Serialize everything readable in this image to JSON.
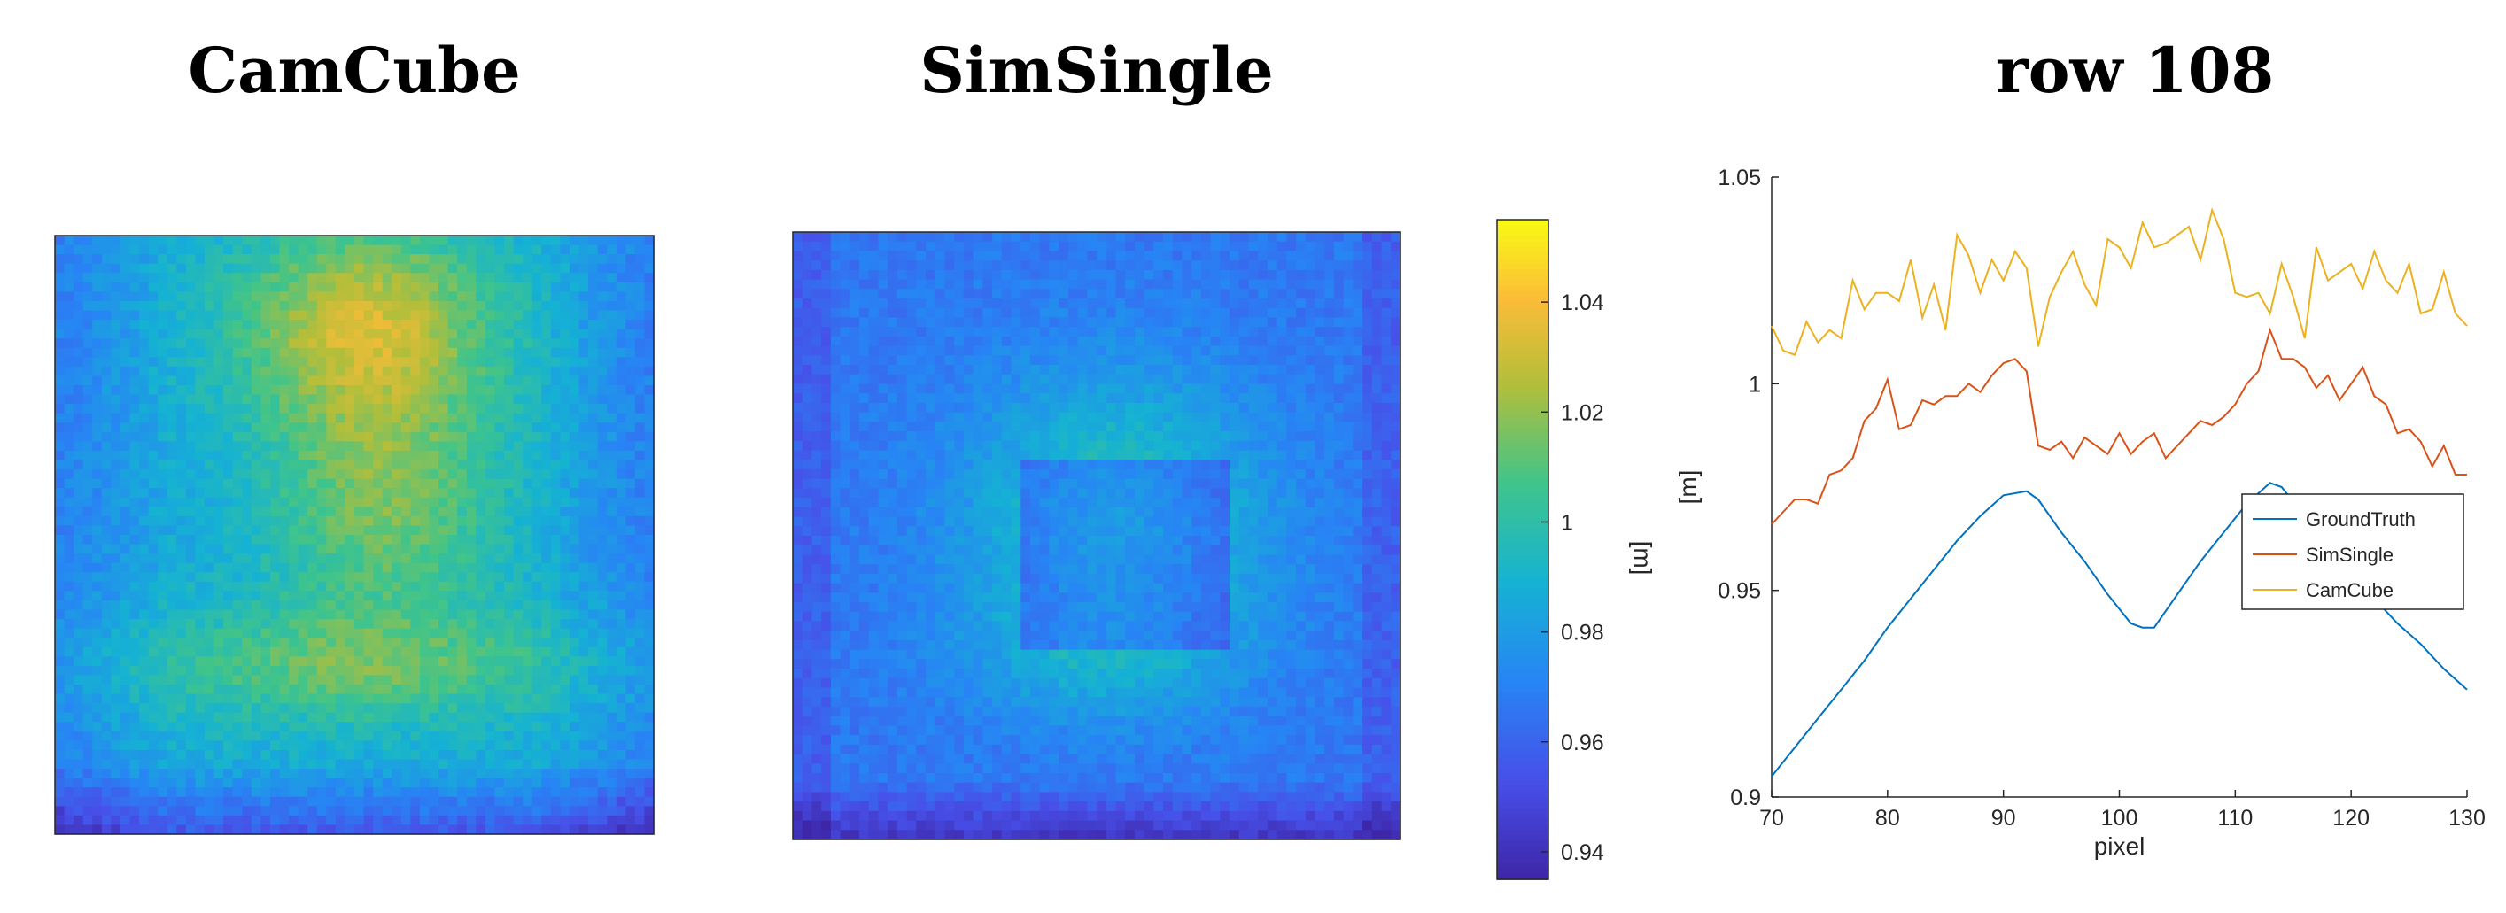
{
  "titles": {
    "left": "CamCube",
    "middle": "SimSingle",
    "right": "row 108"
  },
  "colorbar": {
    "label": "[m]",
    "ticks": [
      "0.94",
      "0.96",
      "0.98",
      "1",
      "1.02",
      "1.04"
    ],
    "tick_values": [
      0.94,
      0.96,
      0.98,
      1.0,
      1.02,
      1.04
    ],
    "range": [
      0.935,
      1.055
    ],
    "colormap": "parula"
  },
  "heatmaps": {
    "camcube": {
      "name": "CamCube",
      "colormap": "parula",
      "value_range": [
        0.97,
        1.05
      ]
    },
    "simsingle": {
      "name": "SimSingle",
      "colormap": "parula",
      "value_range": [
        0.94,
        1.02
      ]
    }
  },
  "chart_data": {
    "type": "line",
    "title": "row 108",
    "xlabel": "pixel",
    "ylabel": "[m]",
    "xlim": [
      70,
      130
    ],
    "ylim": [
      0.9,
      1.05
    ],
    "xticks": [
      "70",
      "80",
      "90",
      "100",
      "110",
      "120",
      "130"
    ],
    "yticks": [
      "0.9",
      "0.95",
      "1",
      "1.05"
    ],
    "legend_position": "right",
    "series": [
      {
        "name": "GroundTruth",
        "color": "#0072BD",
        "x": [
          70,
          72,
          74,
          76,
          78,
          80,
          82,
          84,
          86,
          88,
          90,
          92,
          93,
          95,
          97,
          99,
          101,
          102,
          103,
          105,
          107,
          109,
          111,
          113,
          114,
          116,
          118,
          120,
          122,
          124,
          126,
          128,
          130
        ],
        "y": [
          0.905,
          0.912,
          0.919,
          0.926,
          0.933,
          0.941,
          0.948,
          0.955,
          0.962,
          0.968,
          0.973,
          0.974,
          0.972,
          0.964,
          0.957,
          0.949,
          0.942,
          0.941,
          0.941,
          0.949,
          0.957,
          0.964,
          0.971,
          0.976,
          0.975,
          0.968,
          0.961,
          0.955,
          0.948,
          0.942,
          0.937,
          0.931,
          0.926
        ]
      },
      {
        "name": "SimSingle",
        "color": "#D95319",
        "x": [
          70,
          71,
          72,
          73,
          74,
          75,
          76,
          77,
          78,
          79,
          80,
          81,
          82,
          83,
          84,
          85,
          86,
          87,
          88,
          89,
          90,
          91,
          92,
          93,
          94,
          95,
          96,
          97,
          98,
          99,
          100,
          101,
          102,
          103,
          104,
          105,
          106,
          107,
          108,
          109,
          110,
          111,
          112,
          113,
          114,
          115,
          116,
          117,
          118,
          119,
          120,
          121,
          122,
          123,
          124,
          125,
          126,
          127,
          128,
          129,
          130
        ],
        "y": [
          0.966,
          0.969,
          0.972,
          0.972,
          0.971,
          0.978,
          0.979,
          0.982,
          0.991,
          0.994,
          1.001,
          0.989,
          0.99,
          0.996,
          0.995,
          0.997,
          0.997,
          1.0,
          0.998,
          1.002,
          1.005,
          1.006,
          1.003,
          0.985,
          0.984,
          0.986,
          0.982,
          0.987,
          0.985,
          0.983,
          0.988,
          0.983,
          0.986,
          0.988,
          0.982,
          0.985,
          0.988,
          0.991,
          0.99,
          0.992,
          0.995,
          1.0,
          1.003,
          1.013,
          1.006,
          1.006,
          1.004,
          0.999,
          1.002,
          0.996,
          1.0,
          1.004,
          0.997,
          0.995,
          0.988,
          0.989,
          0.986,
          0.98,
          0.985,
          0.978,
          0.978
        ]
      },
      {
        "name": "CamCube",
        "color": "#EDB120",
        "x": [
          70,
          71,
          72,
          73,
          74,
          75,
          76,
          77,
          78,
          79,
          80,
          81,
          82,
          83,
          84,
          85,
          86,
          87,
          88,
          89,
          90,
          91,
          92,
          93,
          94,
          95,
          96,
          97,
          98,
          99,
          100,
          101,
          102,
          103,
          104,
          105,
          106,
          107,
          108,
          109,
          110,
          111,
          112,
          113,
          114,
          115,
          116,
          117,
          118,
          119,
          120,
          121,
          122,
          123,
          124,
          125,
          126,
          127,
          128,
          129,
          130
        ],
        "y": [
          1.014,
          1.008,
          1.007,
          1.015,
          1.01,
          1.013,
          1.011,
          1.025,
          1.018,
          1.022,
          1.022,
          1.02,
          1.03,
          1.016,
          1.024,
          1.013,
          1.036,
          1.031,
          1.022,
          1.03,
          1.025,
          1.032,
          1.028,
          1.009,
          1.021,
          1.027,
          1.032,
          1.024,
          1.019,
          1.035,
          1.033,
          1.028,
          1.039,
          1.033,
          1.034,
          1.036,
          1.038,
          1.03,
          1.042,
          1.035,
          1.022,
          1.021,
          1.022,
          1.017,
          1.029,
          1.021,
          1.011,
          1.033,
          1.025,
          1.027,
          1.029,
          1.023,
          1.032,
          1.025,
          1.022,
          1.029,
          1.017,
          1.018,
          1.027,
          1.017,
          1.014
        ]
      }
    ]
  }
}
